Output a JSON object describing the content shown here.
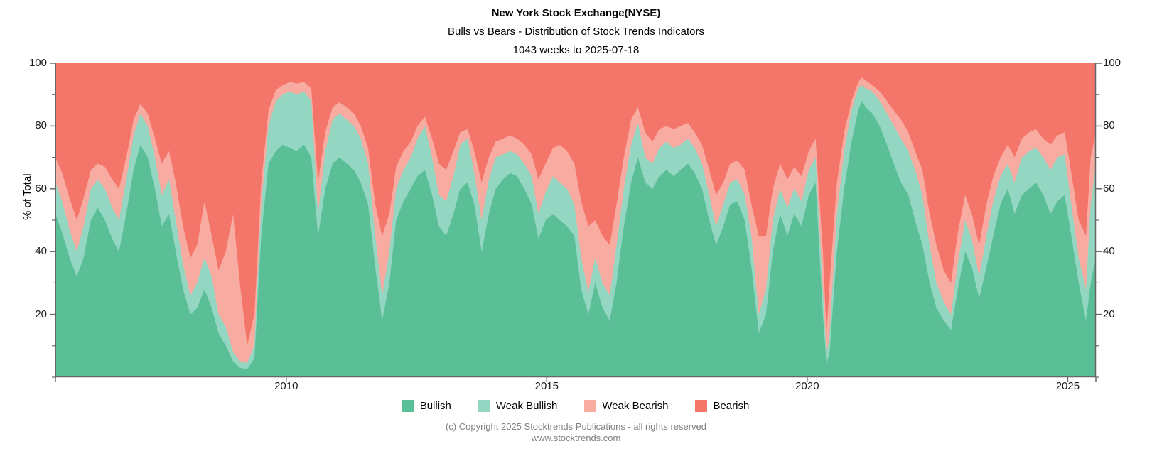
{
  "header": {
    "title": "New York Stock Exchange(NYSE)",
    "subtitle": "Bulls vs Bears - Distribution of Stock Trends Indicators",
    "period": "1043 weeks to 2025-07-18"
  },
  "footer": {
    "copyright": "(c) Copyright 2025 Stocktrends Publications - all rights reserved",
    "website": "www.stocktrends.com"
  },
  "chart_data": {
    "type": "area",
    "stacked": true,
    "title": "New York Stock Exchange(NYSE)",
    "ylabel": "% of Total",
    "ylim": [
      0,
      100
    ],
    "xlim": [
      2005.57,
      2025.54
    ],
    "grid": false,
    "legend_position": "bottom",
    "y_major_ticks": [
      20,
      40,
      60,
      80,
      100
    ],
    "y_minor_ticks": [
      0,
      10,
      30,
      50,
      70,
      90
    ],
    "x_ticks": [
      2010,
      2015,
      2020,
      2025
    ],
    "axis_color": "#666666",
    "label_color": "#1a1a1a",
    "footer_color": "#808080",
    "x": [
      2005.57,
      2005.7,
      2005.84,
      2005.98,
      2006.11,
      2006.25,
      2006.38,
      2006.52,
      2006.66,
      2006.79,
      2006.93,
      2007.07,
      2007.2,
      2007.34,
      2007.48,
      2007.61,
      2007.75,
      2007.88,
      2008.02,
      2008.16,
      2008.29,
      2008.43,
      2008.57,
      2008.7,
      2008.84,
      2008.98,
      2009.11,
      2009.25,
      2009.39,
      2009.52,
      2009.66,
      2009.8,
      2009.93,
      2010.07,
      2010.2,
      2010.34,
      2010.48,
      2010.61,
      2010.75,
      2010.89,
      2011.02,
      2011.16,
      2011.3,
      2011.43,
      2011.57,
      2011.71,
      2011.84,
      2011.98,
      2012.11,
      2012.25,
      2012.39,
      2012.52,
      2012.66,
      2012.8,
      2012.93,
      2013.07,
      2013.21,
      2013.34,
      2013.48,
      2013.61,
      2013.75,
      2013.89,
      2014.02,
      2014.16,
      2014.3,
      2014.43,
      2014.57,
      2014.71,
      2014.84,
      2014.98,
      2015.12,
      2015.25,
      2015.39,
      2015.53,
      2015.66,
      2015.8,
      2015.93,
      2016.07,
      2016.21,
      2016.34,
      2016.48,
      2016.62,
      2016.75,
      2016.89,
      2017.03,
      2017.16,
      2017.3,
      2017.43,
      2017.57,
      2017.71,
      2017.84,
      2017.98,
      2018.12,
      2018.25,
      2018.39,
      2018.52,
      2018.66,
      2018.8,
      2018.93,
      2019.07,
      2019.21,
      2019.34,
      2019.48,
      2019.62,
      2019.75,
      2019.89,
      2020.03,
      2020.16,
      2020.3,
      2020.37,
      2020.43,
      2020.57,
      2020.71,
      2020.85,
      2020.98,
      2021.05,
      2021.12,
      2021.25,
      2021.39,
      2021.53,
      2021.66,
      2021.8,
      2021.94,
      2022.07,
      2022.21,
      2022.35,
      2022.48,
      2022.62,
      2022.76,
      2022.89,
      2023.03,
      2023.16,
      2023.3,
      2023.44,
      2023.57,
      2023.71,
      2023.85,
      2023.98,
      2024.12,
      2024.26,
      2024.39,
      2024.53,
      2024.67,
      2024.8,
      2024.94,
      2025.07,
      2025.21,
      2025.35,
      2025.44,
      2025.54
    ],
    "series": [
      {
        "name": "Bullish",
        "color": "#5abe97",
        "values": [
          52,
          46,
          38,
          32,
          38,
          50,
          54,
          50,
          44,
          40,
          52,
          66,
          74,
          70,
          60,
          48,
          52,
          40,
          28,
          20,
          22,
          28,
          22,
          14,
          10,
          5,
          3,
          2.5,
          6,
          45,
          68,
          72,
          74,
          73,
          72,
          74,
          70,
          45,
          60,
          68,
          70,
          68,
          66,
          62,
          55,
          35,
          18,
          30,
          50,
          56,
          60,
          64,
          66,
          58,
          48,
          45,
          52,
          60,
          62,
          55,
          40,
          52,
          60,
          63,
          65,
          64,
          60,
          55,
          44,
          50,
          52,
          50,
          48,
          45,
          28,
          20,
          30,
          22,
          18,
          30,
          48,
          62,
          70,
          62,
          60,
          64,
          66,
          64,
          66,
          68,
          65,
          60,
          50,
          42,
          48,
          55,
          56,
          50,
          35,
          14,
          20,
          40,
          52,
          45,
          52,
          48,
          58,
          62,
          20,
          4,
          8,
          40,
          60,
          75,
          85,
          88,
          86,
          84,
          80,
          74,
          68,
          62,
          58,
          50,
          42,
          30,
          22,
          18,
          15,
          28,
          40,
          35,
          25,
          35,
          45,
          55,
          60,
          52,
          58,
          60,
          62,
          58,
          52,
          56,
          58,
          45,
          30,
          18,
          30,
          38
        ]
      },
      {
        "name": "Weak Bullish",
        "color": "#93d6c1",
        "values": [
          10,
          10,
          9,
          8,
          10,
          10,
          9,
          10,
          10,
          10,
          11,
          11,
          10,
          10,
          10,
          10,
          11,
          10,
          8,
          6,
          8,
          10,
          10,
          6,
          6,
          3,
          2,
          2,
          4,
          10,
          12,
          16,
          16,
          18,
          18,
          17,
          18,
          7,
          12,
          14,
          14,
          14,
          14,
          14,
          13,
          10,
          8,
          10,
          10,
          10,
          10,
          12,
          14,
          12,
          10,
          11,
          12,
          14,
          14,
          10,
          10,
          11,
          10,
          8,
          7,
          7,
          8,
          9,
          8,
          9,
          12,
          12,
          12,
          10,
          10,
          7,
          8,
          8,
          8,
          12,
          12,
          12,
          11,
          8,
          8,
          9,
          9,
          9,
          8,
          8,
          8,
          8,
          8,
          6,
          7,
          7,
          7,
          8,
          10,
          6,
          8,
          10,
          8,
          9,
          8,
          8,
          8,
          8,
          8,
          3,
          6,
          12,
          12,
          10,
          7,
          5,
          6,
          7,
          8,
          10,
          12,
          14,
          14,
          16,
          16,
          12,
          8,
          6,
          5,
          8,
          10,
          9,
          7,
          10,
          11,
          9,
          8,
          10,
          12,
          12,
          11,
          12,
          14,
          14,
          13,
          10,
          8,
          10,
          25,
          30
        ]
      },
      {
        "name": "Weak Bearish",
        "color": "#f7aba1",
        "values": [
          8,
          9,
          10,
          10,
          9,
          6,
          5,
          7,
          9,
          10,
          7,
          5,
          3,
          4,
          6,
          10,
          9,
          12,
          12,
          12,
          12,
          18,
          13,
          14,
          24,
          44,
          25,
          5.5,
          10,
          7,
          5,
          3.5,
          3,
          3,
          3.5,
          3,
          4,
          10,
          6,
          4,
          3.5,
          4,
          4,
          4,
          5,
          10,
          19,
          12,
          7,
          6,
          5,
          4,
          3,
          6,
          10,
          10,
          8,
          4,
          3,
          7,
          12,
          7,
          5,
          5,
          5,
          5,
          6,
          7,
          11,
          9,
          9,
          12,
          12,
          13,
          18,
          21,
          12,
          15,
          16,
          13,
          10,
          8,
          5,
          8,
          7,
          6,
          5,
          6,
          6,
          5,
          5,
          6,
          8,
          10,
          7,
          6,
          6,
          8,
          10,
          25,
          17,
          10,
          8,
          9,
          7,
          8,
          6,
          6,
          12,
          7,
          16,
          10,
          6,
          3,
          2,
          2.5,
          2.5,
          2,
          3,
          4,
          5,
          6,
          6,
          6,
          8,
          10,
          12,
          10,
          10,
          10,
          8,
          8,
          10,
          10,
          8,
          6,
          6,
          8,
          6,
          6,
          6,
          6,
          8,
          7,
          7,
          10,
          12,
          17,
          15,
          10
        ]
      },
      {
        "name": "Bearish",
        "color": "#f4766b",
        "values": [
          30,
          35,
          43,
          50,
          43,
          34,
          32,
          33,
          37,
          40,
          30,
          18,
          13,
          16,
          24,
          32,
          28,
          38,
          52,
          62,
          58,
          44,
          55,
          66,
          60,
          48,
          70,
          90,
          80,
          38,
          15,
          8.5,
          7,
          6,
          6.5,
          6,
          8,
          38,
          22,
          14,
          12.5,
          14,
          16,
          20,
          27,
          45,
          55,
          48,
          33,
          28,
          25,
          20,
          17,
          24,
          32,
          34,
          28,
          22,
          21,
          28,
          38,
          30,
          25,
          24,
          23,
          24,
          26,
          29,
          37,
          32,
          27,
          26,
          28,
          32,
          44,
          52,
          50,
          55,
          58,
          45,
          30,
          18,
          14,
          22,
          25,
          21,
          20,
          21,
          20,
          19,
          22,
          26,
          34,
          42,
          38,
          32,
          31,
          34,
          45,
          55,
          55,
          40,
          32,
          37,
          33,
          36,
          28,
          24,
          60,
          86,
          70,
          38,
          22,
          12,
          6,
          4.5,
          5.5,
          7,
          9,
          12,
          15,
          18,
          22,
          28,
          34,
          48,
          58,
          66,
          70,
          54,
          42,
          48,
          58,
          45,
          36,
          30,
          26,
          30,
          24,
          22,
          21,
          24,
          26,
          23,
          22,
          35,
          50,
          55,
          30,
          22
        ]
      }
    ]
  }
}
